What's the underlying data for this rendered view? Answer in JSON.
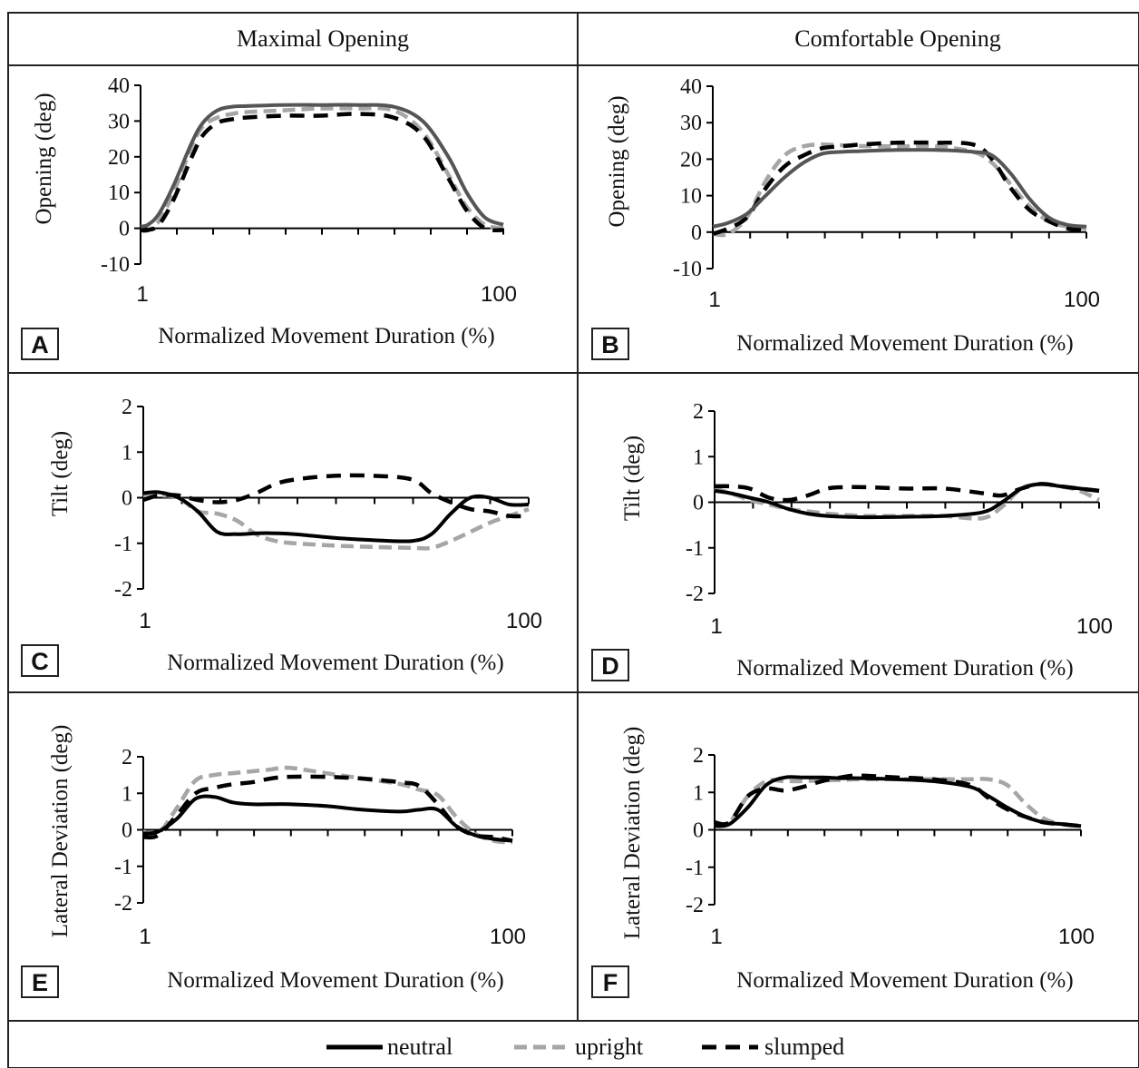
{
  "columns": [
    "Maximal Opening",
    "Comfortable Opening"
  ],
  "legend": [
    {
      "name": "neutral",
      "color": "#000000",
      "dash": "solid"
    },
    {
      "name": "upright",
      "color": "#a6a6a6",
      "dash": "dashed"
    },
    {
      "name": "slumped",
      "color": "#000000",
      "dash": "dashed"
    }
  ],
  "chart_data": [
    {
      "id": "A",
      "type": "line",
      "panel_label": "A",
      "xlabel": "Normalized Movement Duration (%)",
      "ylabel": "Opening (deg)",
      "xlim": [
        1,
        100
      ],
      "xticks": [
        "1",
        "100"
      ],
      "ylim": [
        -10,
        40
      ],
      "yticks": [
        "-10",
        "0",
        "10",
        "20",
        "30",
        "40"
      ],
      "series": [
        {
          "name": "neutral",
          "color": "#555555",
          "x": [
            1,
            3,
            6,
            10,
            15,
            18,
            22,
            26,
            30,
            40,
            50,
            60,
            70,
            78,
            85,
            90,
            95,
            100
          ],
          "y": [
            0.5,
            1,
            4,
            12,
            24,
            29.5,
            33,
            34,
            34.2,
            34.5,
            34.5,
            34.5,
            34,
            30,
            20,
            10,
            3,
            1
          ]
        },
        {
          "name": "upright",
          "color": "#a6a6a6",
          "x": [
            1,
            3,
            6,
            10,
            15,
            18,
            22,
            26,
            30,
            40,
            50,
            60,
            70,
            78,
            85,
            90,
            95,
            100
          ],
          "y": [
            -0.5,
            -0.5,
            2,
            10,
            23,
            28.5,
            31,
            32,
            32.5,
            33,
            33.5,
            33.5,
            33,
            27,
            15,
            6,
            1,
            0
          ]
        },
        {
          "name": "slumped",
          "color": "#000000",
          "x": [
            1,
            3,
            6,
            10,
            15,
            18,
            22,
            26,
            30,
            40,
            50,
            60,
            70,
            78,
            85,
            90,
            95,
            100
          ],
          "y": [
            -0.5,
            -0.5,
            1,
            8,
            20,
            26,
            29.5,
            30.5,
            31,
            31.5,
            31.5,
            32,
            31,
            26,
            14,
            5,
            0,
            -0.5
          ]
        }
      ]
    },
    {
      "id": "B",
      "type": "line",
      "panel_label": "B",
      "xlabel": "Normalized Movement Duration (%)",
      "ylabel": "Opening (deg)",
      "xlim": [
        1,
        100
      ],
      "xticks": [
        "1",
        "100"
      ],
      "ylim": [
        -10,
        40
      ],
      "yticks": [
        "-10",
        "0",
        "10",
        "20",
        "30",
        "40"
      ],
      "series": [
        {
          "name": "neutral",
          "color": "#555555",
          "x": [
            1,
            5,
            10,
            15,
            20,
            25,
            30,
            35,
            40,
            50,
            60,
            70,
            75,
            80,
            85,
            90,
            95,
            100
          ],
          "y": [
            1.5,
            2.5,
            5,
            10,
            15,
            19,
            21.5,
            22,
            22.2,
            22.5,
            22.5,
            22,
            21,
            16,
            9,
            4,
            2,
            1.5
          ]
        },
        {
          "name": "upright",
          "color": "#a6a6a6",
          "x": [
            1,
            5,
            10,
            15,
            20,
            25,
            30,
            35,
            40,
            50,
            60,
            70,
            75,
            80,
            85,
            90,
            95,
            100
          ],
          "y": [
            -0.5,
            -0.5,
            4,
            14,
            21,
            23.5,
            24,
            23.8,
            23.6,
            23.5,
            23.5,
            22,
            19,
            13,
            7,
            3,
            1.5,
            1
          ]
        },
        {
          "name": "slumped",
          "color": "#000000",
          "x": [
            1,
            5,
            10,
            15,
            20,
            25,
            30,
            35,
            40,
            50,
            60,
            70,
            75,
            80,
            85,
            90,
            95,
            100
          ],
          "y": [
            -0.5,
            1,
            4,
            12,
            18,
            21,
            23,
            23.5,
            24,
            24.5,
            24.5,
            24,
            20,
            12,
            6,
            3,
            1,
            0.5
          ]
        }
      ]
    },
    {
      "id": "C",
      "type": "line",
      "panel_label": "C",
      "xlabel": "Normalized Movement Duration (%)",
      "ylabel": "Tilt (deg)",
      "xlim": [
        1,
        100
      ],
      "xticks": [
        "1",
        "100"
      ],
      "ylim": [
        -2,
        2
      ],
      "yticks": [
        "-2",
        "-1",
        "0",
        "1",
        "2"
      ],
      "series": [
        {
          "name": "neutral",
          "color": "#000000",
          "x": [
            1,
            5,
            10,
            15,
            20,
            25,
            30,
            35,
            40,
            50,
            60,
            70,
            75,
            80,
            85,
            90,
            95,
            100
          ],
          "y": [
            0.1,
            0.12,
            0,
            -0.3,
            -0.75,
            -0.8,
            -0.78,
            -0.78,
            -0.8,
            -0.88,
            -0.93,
            -0.95,
            -0.8,
            -0.35,
            0,
            0,
            -0.15,
            -0.15
          ]
        },
        {
          "name": "upright",
          "color": "#a6a6a6",
          "x": [
            1,
            5,
            10,
            15,
            20,
            25,
            30,
            35,
            40,
            50,
            60,
            70,
            75,
            80,
            85,
            90,
            95,
            100
          ],
          "y": [
            0.05,
            0.05,
            0,
            -0.3,
            -0.35,
            -0.5,
            -0.8,
            -0.95,
            -1,
            -1.05,
            -1.08,
            -1.1,
            -1.1,
            -0.95,
            -0.75,
            -0.55,
            -0.4,
            -0.25
          ]
        },
        {
          "name": "slumped",
          "color": "#000000",
          "x": [
            1,
            5,
            10,
            15,
            20,
            25,
            30,
            35,
            40,
            50,
            60,
            70,
            75,
            80,
            85,
            90,
            95,
            100
          ],
          "y": [
            -0.05,
            0.05,
            0.05,
            -0.05,
            -0.1,
            -0.05,
            0.1,
            0.3,
            0.4,
            0.48,
            0.48,
            0.4,
            0.1,
            -0.1,
            -0.25,
            -0.3,
            -0.4,
            -0.4
          ]
        }
      ]
    },
    {
      "id": "D",
      "type": "line",
      "panel_label": "D",
      "xlabel": "Normalized Movement Duration (%)",
      "ylabel": "Tilt (deg)",
      "xlim": [
        1,
        100
      ],
      "xticks": [
        "1",
        "100"
      ],
      "ylim": [
        -2,
        2
      ],
      "yticks": [
        "-2",
        "-1",
        "0",
        "1",
        "2"
      ],
      "series": [
        {
          "name": "neutral",
          "color": "#000000",
          "x": [
            1,
            5,
            10,
            15,
            20,
            25,
            30,
            35,
            40,
            50,
            60,
            70,
            75,
            80,
            85,
            90,
            95,
            100
          ],
          "y": [
            0.25,
            0.2,
            0.1,
            0,
            -0.15,
            -0.25,
            -0.3,
            -0.32,
            -0.33,
            -0.32,
            -0.3,
            -0.22,
            0,
            0.3,
            0.4,
            0.35,
            0.3,
            0.25
          ]
        },
        {
          "name": "upright",
          "color": "#a6a6a6",
          "x": [
            1,
            5,
            10,
            15,
            20,
            25,
            30,
            35,
            40,
            50,
            60,
            70,
            75,
            80,
            85,
            90,
            95,
            100
          ],
          "y": [
            0.3,
            0.2,
            0.05,
            -0.05,
            -0.15,
            -0.2,
            -0.25,
            -0.28,
            -0.3,
            -0.3,
            -0.3,
            -0.35,
            -0.1,
            0.3,
            0.4,
            0.35,
            0.25,
            0.05
          ]
        },
        {
          "name": "slumped",
          "color": "#000000",
          "x": [
            1,
            5,
            10,
            15,
            20,
            25,
            30,
            35,
            40,
            50,
            60,
            70,
            75,
            80,
            85,
            90,
            95,
            100
          ],
          "y": [
            0.35,
            0.35,
            0.3,
            0.1,
            0.05,
            0.15,
            0.3,
            0.33,
            0.33,
            0.3,
            0.3,
            0.2,
            0.15,
            0.3,
            0.4,
            0.35,
            0.3,
            0.25
          ]
        }
      ]
    },
    {
      "id": "E",
      "type": "line",
      "panel_label": "E",
      "xlabel": "Normalized Movement Duration (%)",
      "ylabel": "Lateral Deviation (deg)",
      "xlim": [
        1,
        100
      ],
      "xticks": [
        "1",
        "100"
      ],
      "ylim": [
        -2,
        2
      ],
      "yticks": [
        "-2",
        "-1",
        "0",
        "1",
        "2"
      ],
      "series": [
        {
          "name": "neutral",
          "color": "#000000",
          "x": [
            1,
            5,
            10,
            15,
            20,
            25,
            30,
            35,
            40,
            50,
            60,
            70,
            75,
            80,
            85,
            90,
            95,
            100
          ],
          "y": [
            -0.1,
            -0.05,
            0.3,
            0.85,
            0.9,
            0.75,
            0.7,
            0.7,
            0.7,
            0.65,
            0.55,
            0.5,
            0.55,
            0.55,
            0.1,
            -0.15,
            -0.25,
            -0.3
          ]
        },
        {
          "name": "upright",
          "color": "#a6a6a6",
          "x": [
            1,
            5,
            10,
            15,
            20,
            25,
            30,
            35,
            40,
            50,
            60,
            70,
            75,
            80,
            85,
            90,
            95,
            100
          ],
          "y": [
            -0.05,
            -0.1,
            0.6,
            1.35,
            1.5,
            1.55,
            1.6,
            1.65,
            1.7,
            1.55,
            1.4,
            1.25,
            1.1,
            0.95,
            0.35,
            -0.1,
            -0.3,
            -0.35
          ]
        },
        {
          "name": "slumped",
          "color": "#000000",
          "x": [
            1,
            5,
            10,
            15,
            20,
            25,
            30,
            35,
            40,
            50,
            60,
            70,
            75,
            80,
            85,
            90,
            95,
            100
          ],
          "y": [
            -0.2,
            -0.15,
            0.4,
            1.0,
            1.15,
            1.25,
            1.3,
            1.4,
            1.45,
            1.45,
            1.4,
            1.3,
            1.2,
            0.7,
            0.1,
            -0.15,
            -0.2,
            -0.3
          ]
        }
      ]
    },
    {
      "id": "F",
      "type": "line",
      "panel_label": "F",
      "xlabel": "Normalized Movement Duration (%)",
      "ylabel": "Lateral Deviation (deg)",
      "xlim": [
        1,
        100
      ],
      "xticks": [
        "1",
        "100"
      ],
      "ylim": [
        -2,
        2
      ],
      "yticks": [
        "-2",
        "-1",
        "0",
        "1",
        "2"
      ],
      "series": [
        {
          "name": "neutral",
          "color": "#000000",
          "x": [
            1,
            5,
            10,
            15,
            20,
            25,
            30,
            35,
            40,
            50,
            60,
            70,
            75,
            80,
            85,
            90,
            95,
            100
          ],
          "y": [
            0.1,
            0.15,
            0.6,
            1.2,
            1.4,
            1.4,
            1.4,
            1.38,
            1.38,
            1.35,
            1.3,
            1.15,
            0.9,
            0.6,
            0.35,
            0.2,
            0.15,
            0.1
          ]
        },
        {
          "name": "upright",
          "color": "#a6a6a6",
          "x": [
            1,
            5,
            10,
            15,
            20,
            25,
            30,
            35,
            40,
            50,
            60,
            70,
            75,
            80,
            85,
            90,
            95,
            100
          ],
          "y": [
            0.1,
            0.2,
            0.9,
            1.3,
            1.3,
            1.3,
            1.32,
            1.33,
            1.35,
            1.35,
            1.35,
            1.35,
            1.35,
            1.2,
            0.7,
            0.3,
            0.15,
            0.1
          ]
        },
        {
          "name": "slumped",
          "color": "#000000",
          "x": [
            1,
            5,
            10,
            15,
            20,
            25,
            30,
            35,
            40,
            50,
            60,
            70,
            75,
            80,
            85,
            90,
            95,
            100
          ],
          "y": [
            0.2,
            0.2,
            0.9,
            1.1,
            1.05,
            1.15,
            1.3,
            1.4,
            1.45,
            1.4,
            1.35,
            1.2,
            0.85,
            0.55,
            0.35,
            0.2,
            0.15,
            0.1
          ]
        }
      ]
    }
  ]
}
